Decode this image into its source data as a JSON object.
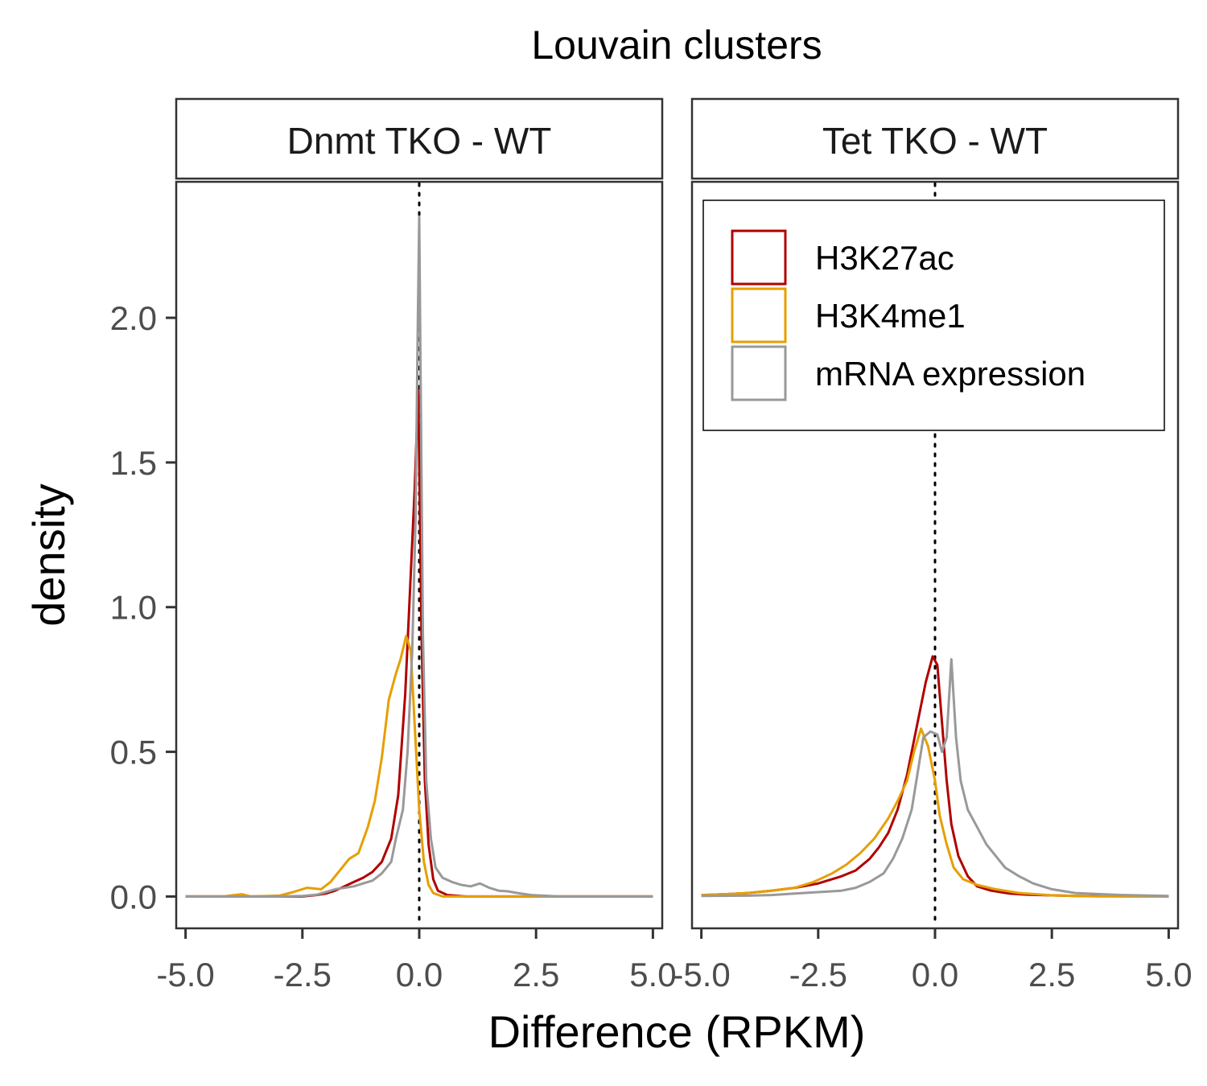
{
  "colors": {
    "H3K27ac": "#B00000",
    "H3K4me1": "#E69F00",
    "mRNA expression": "#999999"
  },
  "chart_data": {
    "type": "line",
    "title": "Louvain clusters",
    "xlabel": "Difference (RPKM)",
    "ylabel": "density",
    "xlim": [
      -5.2,
      5.2
    ],
    "ylim": [
      -0.11,
      2.47
    ],
    "x_ticks": [
      -5.0,
      -2.5,
      0.0,
      2.5,
      5.0
    ],
    "x_tick_labels": [
      "-5.0",
      "-2.5",
      "0.0",
      "2.5",
      "5.0"
    ],
    "y_ticks": [
      0.0,
      0.5,
      1.0,
      1.5,
      2.0
    ],
    "y_tick_labels": [
      "0.0",
      "0.5",
      "1.0",
      "1.5",
      "2.0"
    ],
    "vline_x": 0,
    "grid": false,
    "legend": {
      "location": "top-right of right panel",
      "entries": [
        "H3K27ac",
        "H3K4me1",
        "mRNA expression"
      ]
    },
    "panels": [
      {
        "strip": "Dnmt TKO - WT",
        "series": [
          {
            "name": "H3K27ac",
            "points": [
              [
                -5.0,
                0.0
              ],
              [
                -3.0,
                0.0
              ],
              [
                -2.5,
                0.0
              ],
              [
                -2.2,
                0.005
              ],
              [
                -2.0,
                0.01
              ],
              [
                -1.8,
                0.02
              ],
              [
                -1.6,
                0.035
              ],
              [
                -1.4,
                0.05
              ],
              [
                -1.2,
                0.065
              ],
              [
                -1.0,
                0.085
              ],
              [
                -0.8,
                0.12
              ],
              [
                -0.6,
                0.2
              ],
              [
                -0.45,
                0.35
              ],
              [
                -0.3,
                0.7
              ],
              [
                -0.2,
                1.05
              ],
              [
                -0.1,
                1.4
              ],
              [
                -0.02,
                1.75
              ],
              [
                0.05,
                0.9
              ],
              [
                0.12,
                0.4
              ],
              [
                0.2,
                0.18
              ],
              [
                0.3,
                0.06
              ],
              [
                0.4,
                0.02
              ],
              [
                0.6,
                0.005
              ],
              [
                1.0,
                0.0
              ],
              [
                5.0,
                0.0
              ]
            ]
          },
          {
            "name": "H3K4me1",
            "points": [
              [
                -5.0,
                0.0
              ],
              [
                -4.2,
                0.0
              ],
              [
                -3.8,
                0.008
              ],
              [
                -3.6,
                0.0
              ],
              [
                -3.0,
                0.003
              ],
              [
                -2.7,
                0.015
              ],
              [
                -2.4,
                0.03
              ],
              [
                -2.1,
                0.025
              ],
              [
                -1.9,
                0.05
              ],
              [
                -1.7,
                0.09
              ],
              [
                -1.5,
                0.13
              ],
              [
                -1.3,
                0.15
              ],
              [
                -1.1,
                0.24
              ],
              [
                -0.95,
                0.33
              ],
              [
                -0.8,
                0.48
              ],
              [
                -0.65,
                0.68
              ],
              [
                -0.5,
                0.77
              ],
              [
                -0.4,
                0.82
              ],
              [
                -0.28,
                0.9
              ],
              [
                -0.18,
                0.85
              ],
              [
                -0.1,
                0.6
              ],
              [
                0.0,
                0.3
              ],
              [
                0.1,
                0.12
              ],
              [
                0.2,
                0.04
              ],
              [
                0.3,
                0.012
              ],
              [
                0.5,
                0.0
              ],
              [
                5.0,
                0.0
              ]
            ]
          },
          {
            "name": "mRNA expression",
            "points": [
              [
                -5.0,
                0.0
              ],
              [
                -3.0,
                0.0
              ],
              [
                -2.5,
                0.002
              ],
              [
                -2.2,
                0.006
              ],
              [
                -2.0,
                0.015
              ],
              [
                -1.8,
                0.025
              ],
              [
                -1.6,
                0.03
              ],
              [
                -1.4,
                0.035
              ],
              [
                -1.2,
                0.045
              ],
              [
                -1.0,
                0.055
              ],
              [
                -0.8,
                0.08
              ],
              [
                -0.6,
                0.12
              ],
              [
                -0.5,
                0.2
              ],
              [
                -0.35,
                0.3
              ],
              [
                -0.25,
                0.5
              ],
              [
                -0.15,
                0.85
              ],
              [
                -0.08,
                1.3
              ],
              [
                -0.03,
                2.0
              ],
              [
                0.0,
                2.35
              ],
              [
                0.03,
                1.8
              ],
              [
                0.08,
                0.9
              ],
              [
                0.15,
                0.4
              ],
              [
                0.25,
                0.2
              ],
              [
                0.35,
                0.1
              ],
              [
                0.5,
                0.065
              ],
              [
                0.7,
                0.05
              ],
              [
                0.9,
                0.04
              ],
              [
                1.1,
                0.035
              ],
              [
                1.3,
                0.045
              ],
              [
                1.5,
                0.03
              ],
              [
                1.7,
                0.02
              ],
              [
                1.9,
                0.018
              ],
              [
                2.1,
                0.012
              ],
              [
                2.4,
                0.005
              ],
              [
                3.0,
                0.0
              ],
              [
                5.0,
                0.0
              ]
            ]
          }
        ]
      },
      {
        "strip": "Tet TKO - WT",
        "series": [
          {
            "name": "H3K27ac",
            "points": [
              [
                -5.0,
                0.005
              ],
              [
                -4.5,
                0.008
              ],
              [
                -4.0,
                0.012
              ],
              [
                -3.5,
                0.02
              ],
              [
                -3.0,
                0.03
              ],
              [
                -2.5,
                0.045
              ],
              [
                -2.0,
                0.07
              ],
              [
                -1.7,
                0.09
              ],
              [
                -1.4,
                0.13
              ],
              [
                -1.2,
                0.17
              ],
              [
                -1.0,
                0.22
              ],
              [
                -0.8,
                0.3
              ],
              [
                -0.6,
                0.42
              ],
              [
                -0.4,
                0.58
              ],
              [
                -0.2,
                0.74
              ],
              [
                -0.05,
                0.83
              ],
              [
                0.05,
                0.8
              ],
              [
                0.15,
                0.6
              ],
              [
                0.25,
                0.4
              ],
              [
                0.35,
                0.25
              ],
              [
                0.5,
                0.14
              ],
              [
                0.7,
                0.07
              ],
              [
                0.9,
                0.035
              ],
              [
                1.2,
                0.02
              ],
              [
                1.6,
                0.01
              ],
              [
                2.0,
                0.006
              ],
              [
                3.0,
                0.002
              ],
              [
                5.0,
                0.0
              ]
            ]
          },
          {
            "name": "H3K4me1",
            "points": [
              [
                -5.0,
                0.005
              ],
              [
                -4.5,
                0.008
              ],
              [
                -4.0,
                0.012
              ],
              [
                -3.5,
                0.02
              ],
              [
                -3.0,
                0.03
              ],
              [
                -2.6,
                0.05
              ],
              [
                -2.2,
                0.08
              ],
              [
                -1.9,
                0.11
              ],
              [
                -1.6,
                0.15
              ],
              [
                -1.3,
                0.2
              ],
              [
                -1.0,
                0.27
              ],
              [
                -0.8,
                0.33
              ],
              [
                -0.6,
                0.4
              ],
              [
                -0.45,
                0.5
              ],
              [
                -0.3,
                0.58
              ],
              [
                -0.15,
                0.52
              ],
              [
                0.0,
                0.4
              ],
              [
                0.1,
                0.28
              ],
              [
                0.25,
                0.18
              ],
              [
                0.4,
                0.1
              ],
              [
                0.6,
                0.06
              ],
              [
                0.9,
                0.04
              ],
              [
                1.3,
                0.025
              ],
              [
                1.8,
                0.012
              ],
              [
                2.5,
                0.004
              ],
              [
                3.5,
                0.0
              ],
              [
                5.0,
                0.0
              ]
            ]
          },
          {
            "name": "mRNA expression",
            "points": [
              [
                -5.0,
                0.002
              ],
              [
                -4.0,
                0.003
              ],
              [
                -3.5,
                0.005
              ],
              [
                -3.0,
                0.01
              ],
              [
                -2.5,
                0.015
              ],
              [
                -2.0,
                0.02
              ],
              [
                -1.7,
                0.03
              ],
              [
                -1.4,
                0.05
              ],
              [
                -1.1,
                0.08
              ],
              [
                -0.9,
                0.13
              ],
              [
                -0.7,
                0.2
              ],
              [
                -0.5,
                0.3
              ],
              [
                -0.35,
                0.45
              ],
              [
                -0.25,
                0.55
              ],
              [
                -0.1,
                0.57
              ],
              [
                0.05,
                0.56
              ],
              [
                0.15,
                0.5
              ],
              [
                0.25,
                0.55
              ],
              [
                0.35,
                0.82
              ],
              [
                0.45,
                0.55
              ],
              [
                0.55,
                0.4
              ],
              [
                0.7,
                0.3
              ],
              [
                0.9,
                0.24
              ],
              [
                1.1,
                0.18
              ],
              [
                1.3,
                0.14
              ],
              [
                1.5,
                0.1
              ],
              [
                1.8,
                0.07
              ],
              [
                2.1,
                0.045
              ],
              [
                2.5,
                0.025
              ],
              [
                3.0,
                0.012
              ],
              [
                4.0,
                0.005
              ],
              [
                5.0,
                0.002
              ]
            ]
          }
        ]
      }
    ]
  }
}
